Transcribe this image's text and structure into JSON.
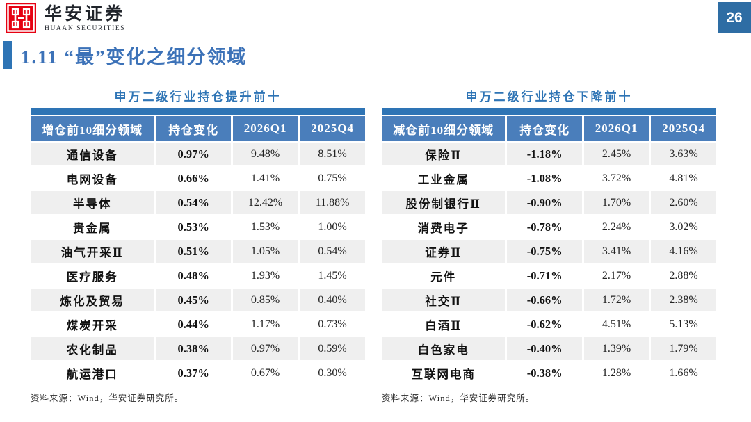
{
  "header": {
    "logo": {
      "brand_cn": "华安证券",
      "brand_en": "HUAAN SECURITIES"
    },
    "page_number": "26",
    "section_title": "1.11 “最”变化之细分领域"
  },
  "colors": {
    "logo_red": "#e60112",
    "title_blue": "#3c72b8",
    "bar_blue": "#2e74b5",
    "header_row_blue": "#4a7ebb",
    "page_box_blue": "#2e6da4",
    "row_stripe_gray": "#efefef"
  },
  "tables": [
    {
      "title": "申万二级行业持仓提升前十",
      "headers": [
        "增仓前10细分领域",
        "持仓变化",
        "2026Q1",
        "2025Q4"
      ],
      "rows": [
        [
          "通信设备",
          "0.97%",
          "9.48%",
          "8.51%"
        ],
        [
          "电网设备",
          "0.66%",
          "1.41%",
          "0.75%"
        ],
        [
          "半导体",
          "0.54%",
          "12.42%",
          "11.88%"
        ],
        [
          "贵金属",
          "0.53%",
          "1.53%",
          "1.00%"
        ],
        [
          "油气开采Ⅱ",
          "0.51%",
          "1.05%",
          "0.54%"
        ],
        [
          "医疗服务",
          "0.48%",
          "1.93%",
          "1.45%"
        ],
        [
          "炼化及贸易",
          "0.45%",
          "0.85%",
          "0.40%"
        ],
        [
          "煤炭开采",
          "0.44%",
          "1.17%",
          "0.73%"
        ],
        [
          "农化制品",
          "0.38%",
          "0.97%",
          "0.59%"
        ],
        [
          "航运港口",
          "0.37%",
          "0.67%",
          "0.30%"
        ]
      ],
      "source": "资料来源：Wind，华安证券研究所。"
    },
    {
      "title": "申万二级行业持仓下降前十",
      "headers": [
        "减仓前10细分领域",
        "持仓变化",
        "2026Q1",
        "2025Q4"
      ],
      "rows": [
        [
          "保险Ⅱ",
          "-1.18%",
          "2.45%",
          "3.63%"
        ],
        [
          "工业金属",
          "-1.08%",
          "3.72%",
          "4.81%"
        ],
        [
          "股份制银行Ⅱ",
          "-0.90%",
          "1.70%",
          "2.60%"
        ],
        [
          "消费电子",
          "-0.78%",
          "2.24%",
          "3.02%"
        ],
        [
          "证券Ⅱ",
          "-0.75%",
          "3.41%",
          "4.16%"
        ],
        [
          "元件",
          "-0.71%",
          "2.17%",
          "2.88%"
        ],
        [
          "社交Ⅱ",
          "-0.66%",
          "1.72%",
          "2.38%"
        ],
        [
          "白酒Ⅱ",
          "-0.62%",
          "4.51%",
          "5.13%"
        ],
        [
          "白色家电",
          "-0.40%",
          "1.39%",
          "1.79%"
        ],
        [
          "互联网电商",
          "-0.38%",
          "1.28%",
          "1.66%"
        ]
      ],
      "source": "资料来源：Wind，华安证券研究所。"
    }
  ]
}
